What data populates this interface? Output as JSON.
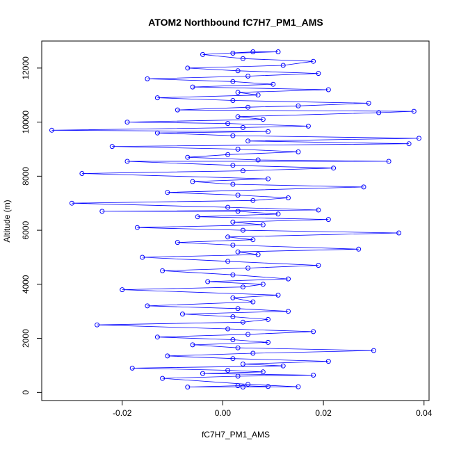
{
  "chart_data": {
    "type": "scatter",
    "title": "ATOM2 Northbound fC7H7_PM1_AMS",
    "xlabel": "fC7H7_PM1_AMS",
    "ylabel": "Altitude (m)",
    "xlim": [
      -0.036,
      0.041
    ],
    "ylim": [
      -300,
      13000
    ],
    "xticks": [
      -0.02,
      0.0,
      0.02,
      0.04
    ],
    "xtick_labels": [
      "-0.02",
      "0.00",
      "0.02",
      "0.04"
    ],
    "yticks": [
      0,
      2000,
      4000,
      6000,
      8000,
      10000,
      12000
    ],
    "ytick_labels": [
      "0",
      "2000",
      "4000",
      "6000",
      "8000",
      "10000",
      "12000"
    ],
    "marker": "open-circle",
    "line": "connected",
    "grid": false,
    "series": [
      {
        "color": "#0000ff",
        "points": [
          [
            0.004,
            200
          ],
          [
            0.009,
            220
          ],
          [
            0.003,
            250
          ],
          [
            -0.007,
            200
          ],
          [
            0.015,
            210
          ],
          [
            0.005,
            300
          ],
          [
            -0.012,
            520
          ],
          [
            0.003,
            600
          ],
          [
            0.018,
            640
          ],
          [
            -0.004,
            700
          ],
          [
            0.008,
            760
          ],
          [
            0.001,
            820
          ],
          [
            -0.018,
            900
          ],
          [
            0.012,
            980
          ],
          [
            0.004,
            1050
          ],
          [
            0.021,
            1150
          ],
          [
            0.002,
            1250
          ],
          [
            -0.011,
            1350
          ],
          [
            0.006,
            1450
          ],
          [
            0.03,
            1550
          ],
          [
            0.003,
            1650
          ],
          [
            -0.006,
            1760
          ],
          [
            0.009,
            1850
          ],
          [
            0.002,
            1950
          ],
          [
            -0.013,
            2050
          ],
          [
            0.005,
            2150
          ],
          [
            0.018,
            2250
          ],
          [
            0.001,
            2350
          ],
          [
            -0.025,
            2500
          ],
          [
            0.004,
            2600
          ],
          [
            0.009,
            2700
          ],
          [
            0.002,
            2800
          ],
          [
            -0.008,
            2900
          ],
          [
            0.013,
            3000
          ],
          [
            0.003,
            3100
          ],
          [
            -0.015,
            3200
          ],
          [
            0.006,
            3350
          ],
          [
            0.002,
            3500
          ],
          [
            0.011,
            3600
          ],
          [
            -0.02,
            3800
          ],
          [
            0.004,
            3900
          ],
          [
            0.008,
            4000
          ],
          [
            -0.003,
            4100
          ],
          [
            0.013,
            4200
          ],
          [
            0.002,
            4350
          ],
          [
            -0.012,
            4500
          ],
          [
            0.005,
            4600
          ],
          [
            0.019,
            4700
          ],
          [
            0.001,
            4850
          ],
          [
            -0.016,
            5000
          ],
          [
            0.007,
            5100
          ],
          [
            0.003,
            5200
          ],
          [
            0.027,
            5300
          ],
          [
            0.002,
            5450
          ],
          [
            -0.009,
            5550
          ],
          [
            0.006,
            5650
          ],
          [
            0.001,
            5750
          ],
          [
            0.035,
            5900
          ],
          [
            0.004,
            6000
          ],
          [
            -0.017,
            6100
          ],
          [
            0.008,
            6200
          ],
          [
            0.002,
            6300
          ],
          [
            0.021,
            6400
          ],
          [
            -0.005,
            6500
          ],
          [
            0.011,
            6600
          ],
          [
            0.003,
            6700
          ],
          [
            -0.024,
            6700
          ],
          [
            0.019,
            6750
          ],
          [
            0.001,
            6850
          ],
          [
            -0.03,
            7000
          ],
          [
            0.006,
            7100
          ],
          [
            0.013,
            7200
          ],
          [
            0.003,
            7300
          ],
          [
            -0.011,
            7400
          ],
          [
            0.028,
            7600
          ],
          [
            0.002,
            7700
          ],
          [
            -0.006,
            7800
          ],
          [
            0.009,
            7900
          ],
          [
            -0.028,
            8100
          ],
          [
            0.004,
            8200
          ],
          [
            0.022,
            8300
          ],
          [
            0.002,
            8400
          ],
          [
            -0.019,
            8550
          ],
          [
            0.033,
            8550
          ],
          [
            0.007,
            8600
          ],
          [
            -0.007,
            8700
          ],
          [
            0.001,
            8800
          ],
          [
            0.015,
            8900
          ],
          [
            0.003,
            9000
          ],
          [
            -0.022,
            9100
          ],
          [
            0.037,
            9200
          ],
          [
            0.005,
            9300
          ],
          [
            0.039,
            9400
          ],
          [
            0.002,
            9500
          ],
          [
            -0.013,
            9600
          ],
          [
            0.009,
            9650
          ],
          [
            -0.034,
            9700
          ],
          [
            0.004,
            9800
          ],
          [
            0.017,
            9850
          ],
          [
            0.001,
            9950
          ],
          [
            -0.019,
            10000
          ],
          [
            0.008,
            10100
          ],
          [
            0.003,
            10200
          ],
          [
            0.031,
            10350
          ],
          [
            0.038,
            10400
          ],
          [
            -0.009,
            10450
          ],
          [
            0.005,
            10550
          ],
          [
            0.015,
            10600
          ],
          [
            0.029,
            10700
          ],
          [
            0.002,
            10800
          ],
          [
            -0.013,
            10900
          ],
          [
            0.007,
            11000
          ],
          [
            0.003,
            11100
          ],
          [
            0.021,
            11200
          ],
          [
            -0.006,
            11300
          ],
          [
            0.01,
            11400
          ],
          [
            0.002,
            11500
          ],
          [
            -0.015,
            11600
          ],
          [
            0.005,
            11700
          ],
          [
            0.019,
            11800
          ],
          [
            0.003,
            11900
          ],
          [
            -0.007,
            12000
          ],
          [
            0.012,
            12100
          ],
          [
            0.018,
            12250
          ],
          [
            0.004,
            12350
          ],
          [
            -0.004,
            12500
          ],
          [
            0.006,
            12600
          ],
          [
            0.011,
            12600
          ],
          [
            0.002,
            12550
          ]
        ]
      }
    ]
  }
}
